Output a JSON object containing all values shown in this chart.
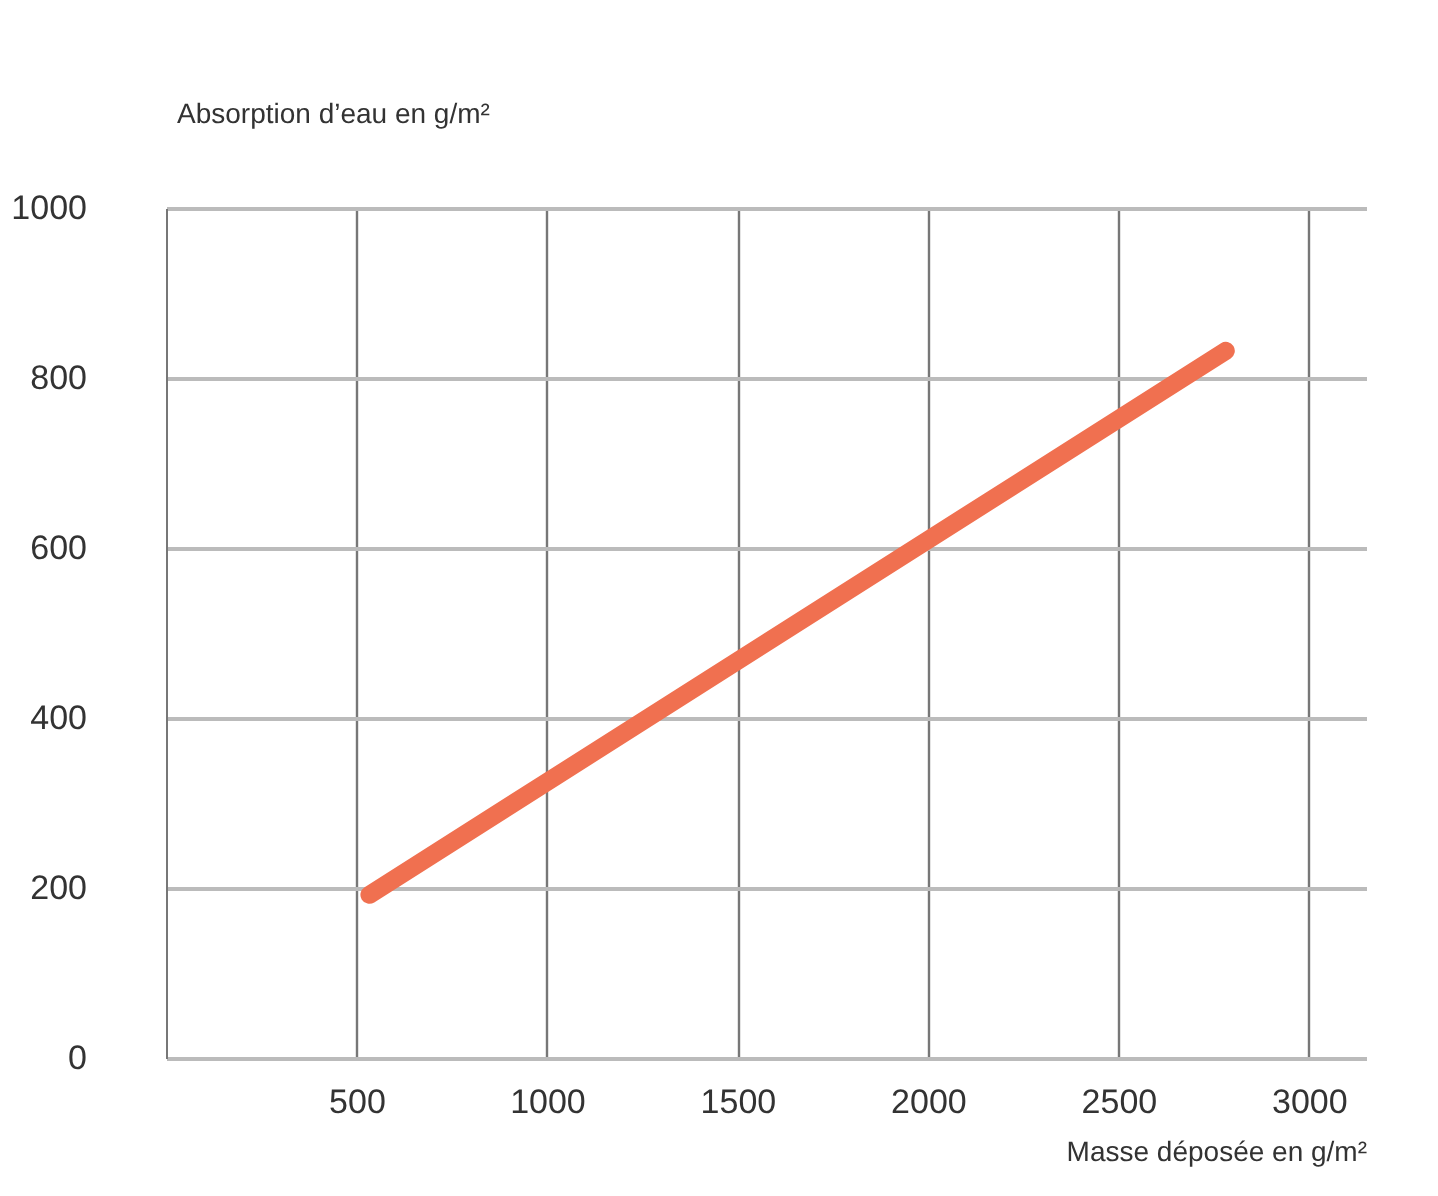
{
  "chart_data": {
    "type": "line",
    "xlabel": "Masse déposée en g/m²",
    "ylabel": "Absorption d’eau en g/m²",
    "x": [
      534,
      2782
    ],
    "series": [
      {
        "color": "#f07050",
        "values": [
          192,
          832
        ]
      }
    ],
    "xlim": [
      0,
      3150
    ],
    "xticks": [
      500,
      1000,
      1500,
      2000,
      2500,
      3000
    ],
    "ylim": [
      0,
      1000
    ],
    "yticks": [
      0,
      200,
      400,
      600,
      800,
      1000
    ],
    "grid": true,
    "line_style": "solid"
  }
}
